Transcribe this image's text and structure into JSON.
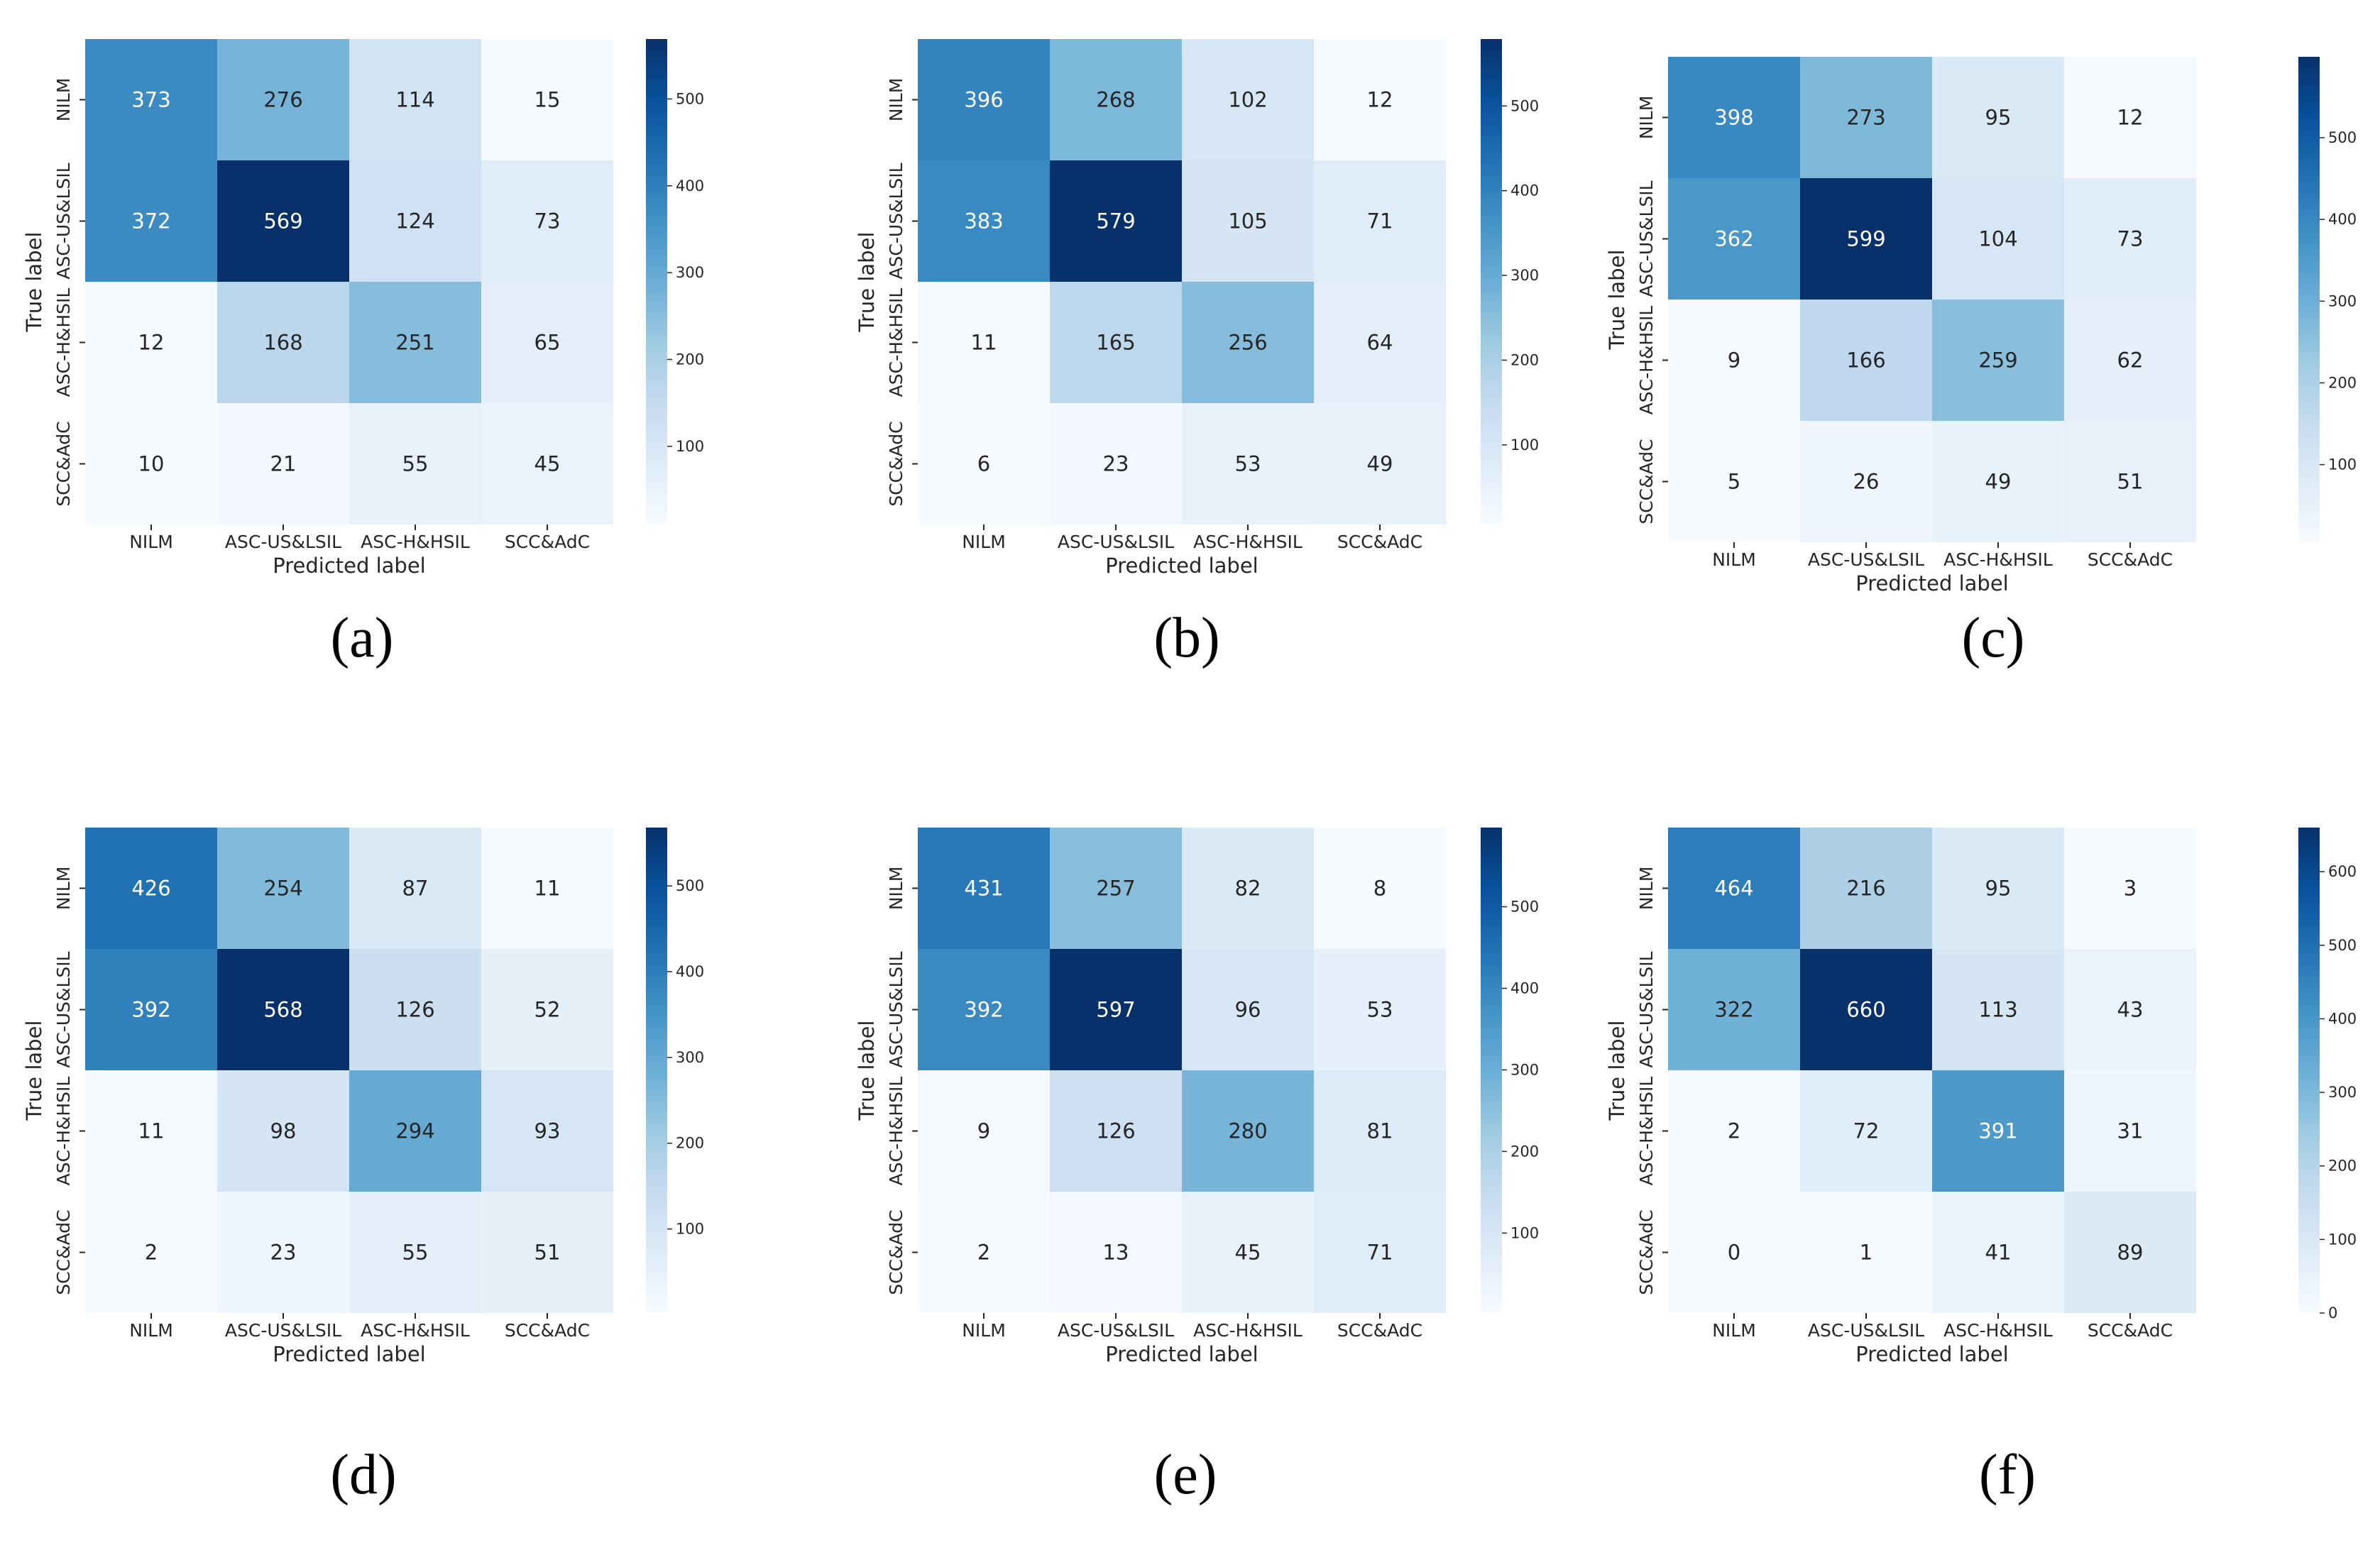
{
  "figure": {
    "panels": [
      "(a)",
      "(b)",
      "(c)",
      "(d)",
      "(e)",
      "(f)"
    ]
  },
  "colors": {
    "low": "#f7fbff",
    "high": "#08306b",
    "text_dark": "#262626",
    "text_light": "#ffffff",
    "axis": "#262626"
  },
  "chart_data": [
    {
      "type": "heatmap",
      "title": "(a)",
      "xlabel": "Predicted label",
      "ylabel": "True label",
      "x_categories": [
        "NILM",
        "ASC-US&LSIL",
        "ASC-H&HSIL",
        "SCC&AdC"
      ],
      "y_categories": [
        "NILM",
        "ASC-US&LSIL",
        "ASC-H&HSIL",
        "SCC&AdC"
      ],
      "values": [
        [
          373,
          276,
          114,
          15
        ],
        [
          372,
          569,
          124,
          73
        ],
        [
          12,
          168,
          251,
          65
        ],
        [
          10,
          21,
          55,
          45
        ]
      ],
      "colorbar": {
        "ticks": [
          100,
          200,
          300,
          400,
          500
        ]
      }
    },
    {
      "type": "heatmap",
      "title": "(b)",
      "xlabel": "Predicted label",
      "ylabel": "True label",
      "x_categories": [
        "NILM",
        "ASC-US&LSIL",
        "ASC-H&HSIL",
        "SCC&AdC"
      ],
      "y_categories": [
        "NILM",
        "ASC-US&LSIL",
        "ASC-H&HSIL",
        "SCC&AdC"
      ],
      "values": [
        [
          396,
          268,
          102,
          12
        ],
        [
          383,
          579,
          105,
          71
        ],
        [
          11,
          165,
          256,
          64
        ],
        [
          6,
          23,
          53,
          49
        ]
      ],
      "colorbar": {
        "ticks": [
          100,
          200,
          300,
          400,
          500
        ]
      }
    },
    {
      "type": "heatmap",
      "title": "(c)",
      "xlabel": "Predicted label",
      "ylabel": "True label",
      "x_categories": [
        "NILM",
        "ASC-US&LSIL",
        "ASC-H&HSIL",
        "SCC&AdC"
      ],
      "y_categories": [
        "NILM",
        "ASC-US&LSIL",
        "ASC-H&HSIL",
        "SCC&AdC"
      ],
      "values": [
        [
          398,
          273,
          95,
          12
        ],
        [
          362,
          599,
          104,
          73
        ],
        [
          9,
          166,
          259,
          62
        ],
        [
          5,
          26,
          49,
          51
        ]
      ],
      "colorbar": {
        "ticks": [
          100,
          200,
          300,
          400,
          500
        ]
      }
    },
    {
      "type": "heatmap",
      "title": "(d)",
      "xlabel": "Predicted label",
      "ylabel": "True label",
      "x_categories": [
        "NILM",
        "ASC-US&LSIL",
        "ASC-H&HSIL",
        "SCC&AdC"
      ],
      "y_categories": [
        "NILM",
        "ASC-US&LSIL",
        "ASC-H&HSIL",
        "SCC&AdC"
      ],
      "values": [
        [
          426,
          254,
          87,
          11
        ],
        [
          392,
          568,
          126,
          52
        ],
        [
          11,
          98,
          294,
          93
        ],
        [
          2,
          23,
          55,
          51
        ]
      ],
      "colorbar": {
        "ticks": [
          100,
          200,
          300,
          400,
          500
        ]
      }
    },
    {
      "type": "heatmap",
      "title": "(e)",
      "xlabel": "Predicted label",
      "ylabel": "True label",
      "x_categories": [
        "NILM",
        "ASC-US&LSIL",
        "ASC-H&HSIL",
        "SCC&AdC"
      ],
      "y_categories": [
        "NILM",
        "ASC-US&LSIL",
        "ASC-H&HSIL",
        "SCC&AdC"
      ],
      "values": [
        [
          431,
          257,
          82,
          8
        ],
        [
          392,
          597,
          96,
          53
        ],
        [
          9,
          126,
          280,
          81
        ],
        [
          2,
          13,
          45,
          71
        ]
      ],
      "colorbar": {
        "ticks": [
          100,
          200,
          300,
          400,
          500
        ]
      }
    },
    {
      "type": "heatmap",
      "title": "(f)",
      "xlabel": "Predicted label",
      "ylabel": "True label",
      "x_categories": [
        "NILM",
        "ASC-US&LSIL",
        "ASC-H&HSIL",
        "SCC&AdC"
      ],
      "y_categories": [
        "NILM",
        "ASC-US&LSIL",
        "ASC-H&HSIL",
        "SCC&AdC"
      ],
      "values": [
        [
          464,
          216,
          95,
          3
        ],
        [
          322,
          660,
          113,
          43
        ],
        [
          2,
          72,
          391,
          31
        ],
        [
          0,
          1,
          41,
          89
        ]
      ],
      "colorbar": {
        "ticks": [
          0,
          100,
          200,
          300,
          400,
          500,
          600
        ]
      }
    }
  ]
}
